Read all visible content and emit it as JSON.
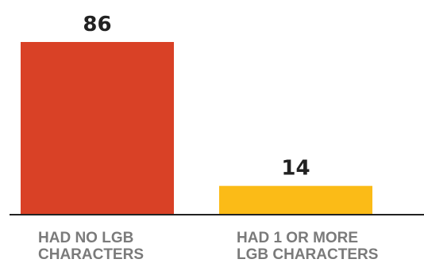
{
  "chart_data": {
    "type": "bar",
    "categories": [
      [
        "HAD NO LGB",
        "CHARACTERS"
      ],
      [
        "HAD 1 OR MORE",
        "LGB CHARACTERS"
      ]
    ],
    "values": [
      86,
      14
    ],
    "value_labels": [
      "86",
      "14"
    ],
    "colors": [
      "#d94126",
      "#fbbb17"
    ],
    "ylim": [
      0,
      86
    ],
    "grid": false,
    "legend": "none",
    "baseline_color": "#222222"
  }
}
